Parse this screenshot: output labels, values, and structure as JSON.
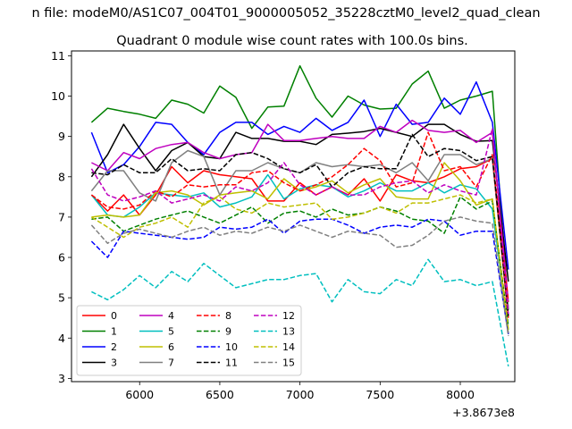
{
  "chart_data": {
    "type": "line",
    "title_top": "n file: modeM0/AS1C07_004T01_9000005052_35228cztM0_level2_quad_clean",
    "title": "Quadrant 0 module wise count rates with 100.0s bins.",
    "xlabel": "",
    "ylabel": "",
    "offset_text": "+3.8673e8",
    "xlim": [
      5575,
      8340
    ],
    "ylim": [
      2.92,
      11.12
    ],
    "x_ticks": [
      6000,
      6500,
      7000,
      7500,
      8000
    ],
    "y_ticks": [
      3,
      4,
      5,
      6,
      7,
      8,
      9,
      10,
      11
    ],
    "grid": false,
    "legend_location": "lower-left",
    "legend_columns": 4,
    "x": [
      5700,
      5800,
      5900,
      6000,
      6100,
      6200,
      6300,
      6400,
      6500,
      6600,
      6700,
      6800,
      6900,
      7000,
      7100,
      7200,
      7300,
      7400,
      7500,
      7600,
      7700,
      7800,
      7900,
      8000,
      8100,
      8200,
      8300
    ],
    "series": [
      {
        "name": "0",
        "color": "#ff0000",
        "style": "solid",
        "values": [
          7.55,
          7.15,
          7.55,
          7.05,
          7.55,
          8.25,
          7.85,
          8.15,
          8.05,
          8.0,
          7.95,
          7.4,
          7.4,
          7.85,
          7.55,
          7.75,
          7.55,
          7.95,
          7.4,
          8.05,
          7.9,
          7.85,
          8.0,
          8.2,
          8.25,
          8.45,
          4.5
        ]
      },
      {
        "name": "1",
        "color": "#008000",
        "style": "solid",
        "values": [
          9.35,
          9.7,
          9.62,
          9.55,
          9.45,
          9.9,
          9.8,
          9.58,
          10.25,
          9.97,
          9.2,
          9.73,
          9.75,
          10.75,
          9.95,
          9.48,
          10.0,
          9.78,
          9.68,
          9.7,
          10.3,
          10.62,
          9.7,
          9.9,
          10.0,
          10.12,
          4.7
        ]
      },
      {
        "name": "2",
        "color": "#0000ff",
        "style": "solid",
        "values": [
          9.1,
          8.1,
          8.3,
          8.75,
          9.35,
          9.3,
          8.85,
          8.55,
          9.1,
          9.35,
          9.35,
          9.05,
          9.25,
          9.1,
          9.45,
          9.15,
          9.35,
          9.9,
          9.0,
          9.8,
          9.3,
          9.35,
          9.95,
          9.55,
          10.35,
          9.35,
          5.7
        ]
      },
      {
        "name": "3",
        "color": "#000000",
        "style": "solid",
        "values": [
          8.0,
          8.55,
          9.3,
          8.7,
          8.15,
          8.65,
          8.85,
          8.5,
          8.45,
          9.1,
          8.95,
          8.95,
          8.88,
          8.88,
          8.8,
          9.05,
          9.08,
          9.12,
          9.2,
          9.1,
          9.0,
          9.3,
          9.3,
          9.05,
          8.88,
          8.9,
          5.4
        ]
      },
      {
        "name": "4",
        "color": "#bf00bf",
        "style": "solid",
        "values": [
          8.35,
          8.15,
          8.6,
          8.45,
          8.7,
          8.8,
          8.85,
          8.6,
          8.45,
          8.55,
          8.6,
          9.3,
          8.9,
          8.9,
          8.95,
          9.0,
          8.95,
          8.95,
          9.25,
          9.1,
          9.4,
          9.15,
          9.1,
          9.15,
          8.85,
          9.1,
          4.9
        ]
      },
      {
        "name": "5",
        "color": "#00bfbf",
        "style": "solid",
        "values": [
          7.55,
          7.05,
          7.0,
          7.25,
          7.6,
          7.55,
          7.5,
          7.6,
          7.25,
          7.35,
          7.5,
          8.05,
          7.45,
          7.7,
          7.8,
          7.75,
          7.5,
          7.65,
          7.85,
          7.65,
          7.65,
          7.85,
          7.6,
          7.8,
          7.7,
          7.2,
          4.2
        ]
      },
      {
        "name": "6",
        "color": "#bfbf00",
        "style": "solid",
        "values": [
          7.0,
          7.05,
          7.0,
          7.05,
          7.6,
          7.65,
          7.55,
          7.3,
          7.55,
          7.6,
          7.65,
          7.45,
          7.95,
          7.65,
          7.75,
          7.9,
          7.6,
          7.8,
          7.95,
          7.5,
          7.45,
          7.45,
          8.35,
          7.9,
          7.3,
          7.45,
          4.1
        ]
      },
      {
        "name": "7",
        "color": "#808080",
        "style": "solid",
        "values": [
          7.65,
          8.15,
          8.15,
          7.6,
          7.4,
          8.35,
          8.65,
          8.5,
          7.55,
          8.15,
          8.15,
          8.35,
          8.2,
          8.1,
          8.35,
          8.25,
          8.3,
          8.25,
          8.3,
          8.1,
          8.35,
          7.9,
          8.55,
          8.55,
          8.3,
          8.45,
          4.75
        ]
      },
      {
        "name": "8",
        "color": "#ff0000",
        "style": "dashed",
        "values": [
          7.55,
          7.25,
          7.2,
          7.3,
          7.65,
          7.5,
          7.8,
          7.75,
          7.8,
          7.8,
          8.1,
          8.15,
          7.85,
          7.65,
          7.8,
          8.0,
          8.3,
          8.7,
          8.4,
          7.75,
          7.85,
          9.1,
          8.15,
          8.25,
          7.75,
          8.55,
          4.9
        ]
      },
      {
        "name": "9",
        "color": "#008000",
        "style": "dashed",
        "values": [
          6.95,
          7.0,
          6.65,
          6.8,
          6.95,
          7.05,
          7.15,
          7.0,
          6.85,
          7.05,
          7.25,
          6.85,
          7.1,
          7.15,
          7.0,
          7.2,
          7.05,
          7.1,
          7.25,
          7.15,
          6.95,
          6.9,
          6.6,
          7.5,
          7.2,
          7.4,
          4.3
        ]
      },
      {
        "name": "10",
        "color": "#0000ff",
        "style": "dashed",
        "values": [
          6.4,
          6.0,
          6.65,
          6.6,
          6.55,
          6.5,
          6.45,
          6.5,
          6.75,
          6.7,
          6.75,
          6.95,
          6.6,
          6.9,
          6.95,
          6.95,
          6.8,
          6.6,
          6.75,
          6.8,
          6.75,
          6.95,
          6.9,
          6.55,
          6.65,
          6.65,
          4.1
        ]
      },
      {
        "name": "11",
        "color": "#000000",
        "style": "dashed",
        "values": [
          8.1,
          8.05,
          8.3,
          8.1,
          8.1,
          8.45,
          8.15,
          8.2,
          8.15,
          8.55,
          8.6,
          8.45,
          8.2,
          8.1,
          8.3,
          7.75,
          8.1,
          8.25,
          8.2,
          8.2,
          9.05,
          8.5,
          8.7,
          8.65,
          8.4,
          8.5,
          4.55
        ]
      },
      {
        "name": "12",
        "color": "#bf00bf",
        "style": "dashed",
        "values": [
          8.2,
          7.55,
          7.4,
          7.5,
          7.65,
          7.35,
          7.45,
          7.55,
          7.4,
          7.75,
          7.65,
          7.85,
          8.35,
          7.8,
          7.55,
          7.75,
          7.55,
          7.55,
          7.75,
          7.85,
          7.9,
          7.6,
          7.8,
          7.65,
          7.55,
          9.2,
          4.6
        ]
      },
      {
        "name": "13",
        "color": "#00bfbf",
        "style": "dashed",
        "values": [
          5.15,
          4.95,
          5.2,
          5.55,
          5.25,
          5.65,
          5.4,
          5.85,
          5.55,
          5.25,
          5.35,
          5.45,
          5.45,
          5.55,
          5.6,
          4.9,
          5.45,
          5.15,
          5.1,
          5.45,
          5.3,
          5.95,
          5.4,
          5.45,
          5.3,
          5.4,
          3.3
        ]
      },
      {
        "name": "14",
        "color": "#bfbf00",
        "style": "dashed",
        "values": [
          7.0,
          6.75,
          6.5,
          6.75,
          6.85,
          7.0,
          6.75,
          7.35,
          7.5,
          7.2,
          7.1,
          7.35,
          7.25,
          7.3,
          7.35,
          6.95,
          7.0,
          7.1,
          7.25,
          7.1,
          7.35,
          7.35,
          7.45,
          7.55,
          7.35,
          7.45,
          4.2
        ]
      },
      {
        "name": "15",
        "color": "#808080",
        "style": "dashed",
        "values": [
          6.8,
          6.35,
          6.6,
          6.7,
          6.6,
          6.5,
          6.65,
          6.75,
          6.55,
          6.65,
          6.6,
          6.75,
          6.65,
          6.8,
          6.65,
          6.5,
          6.65,
          6.6,
          6.55,
          6.25,
          6.3,
          6.55,
          6.9,
          7.0,
          6.9,
          6.85,
          4.05
        ]
      }
    ]
  }
}
